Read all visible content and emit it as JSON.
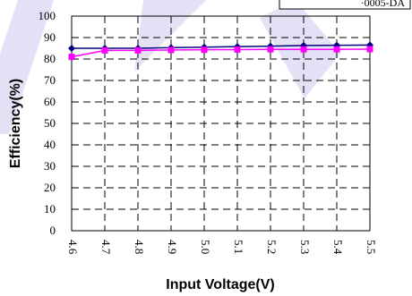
{
  "chart_data": {
    "type": "line",
    "title": "",
    "xlabel": "Input Voltage(V)",
    "ylabel": "Efficiency(%)",
    "x": [
      4.6,
      4.7,
      4.8,
      4.9,
      5.0,
      5.1,
      5.2,
      5.3,
      5.4,
      5.5
    ],
    "x_tick_labels": [
      "4.6",
      "4.7",
      "4.8",
      "4.9",
      "5.0",
      "5.1",
      "5.2",
      "5.3",
      "5.4",
      "5.5"
    ],
    "y_ticks": [
      0,
      10,
      20,
      30,
      40,
      50,
      60,
      70,
      80,
      90,
      100
    ],
    "ylim": [
      0,
      100
    ],
    "grid": "dashed",
    "legend_partial_text": "·0005-DA",
    "series": [
      {
        "values": [
          85.0,
          85.0,
          85.0,
          85.3,
          85.5,
          85.8,
          86.0,
          86.3,
          86.4,
          86.5
        ],
        "color": "#000080",
        "marker": "diamond"
      },
      {
        "values": [
          81.0,
          84.0,
          84.0,
          84.2,
          84.3,
          84.4,
          84.5,
          84.5,
          84.5,
          84.6
        ],
        "color": "#ff00ff",
        "marker": "square"
      }
    ]
  }
}
